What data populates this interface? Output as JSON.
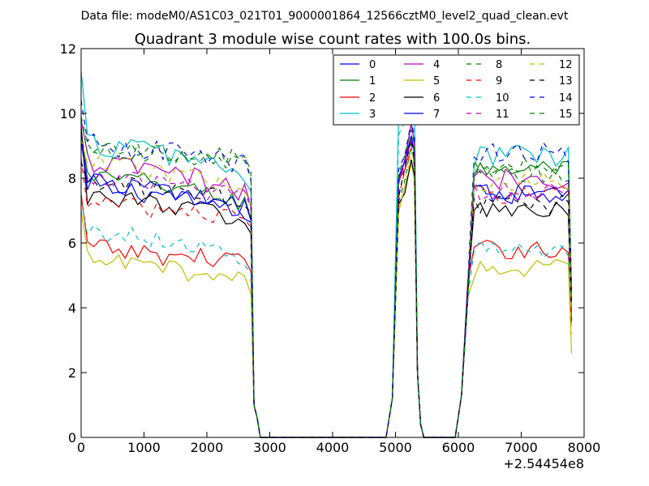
{
  "chart_data": {
    "type": "line",
    "suptitle": "Data file: modeM0/AS1C03_021T01_9000001864_12566cztM0_level2_quad_clean.evt",
    "title": "Quadrant 3 module wise count rates with 100.0s bins.",
    "xlabel": "",
    "ylabel": "",
    "x_offset_label": "+2.54454e8",
    "xlim": [
      0,
      8000
    ],
    "ylim": [
      0,
      12
    ],
    "xticks": [
      0,
      1000,
      2000,
      3000,
      4000,
      5000,
      6000,
      7000,
      8000
    ],
    "yticks": [
      0,
      2,
      4,
      6,
      8,
      10,
      12
    ],
    "legend_position": "top-right",
    "segments": [
      {
        "start": 0,
        "end": 2700,
        "step": 100
      },
      {
        "start": 2800,
        "end": 4800,
        "step": 100
      },
      {
        "start": 4900,
        "end": 5300,
        "step": 100
      },
      {
        "start": 5400,
        "end": 6000,
        "step": 100
      },
      {
        "start": 6100,
        "end": 7700,
        "step": 100
      },
      {
        "start": 7800,
        "end": 7800,
        "step": 100
      }
    ],
    "series": [
      {
        "name": "0",
        "color": "#0000ff",
        "dash": "solid",
        "level_start": 9.5,
        "level_mid": 7.5,
        "level_late": 7.0,
        "level_post": 7.6,
        "peak": 9.6,
        "noise": 0.35,
        "end": 4.0
      },
      {
        "name": "1",
        "color": "#008000",
        "dash": "solid",
        "level_start": 9.3,
        "level_mid": 7.8,
        "level_late": 7.2,
        "level_post": 8.3,
        "peak": 9.3,
        "noise": 0.3,
        "end": 3.6
      },
      {
        "name": "2",
        "color": "#ff0000",
        "dash": "solid",
        "level_start": 7.5,
        "level_mid": 5.6,
        "level_late": 5.5,
        "level_post": 5.8,
        "peak": 9.3,
        "noise": 0.3,
        "end": 3.5
      },
      {
        "name": "3",
        "color": "#00bfbf",
        "dash": "solid",
        "level_start": 11.3,
        "level_mid": 8.8,
        "level_late": 8.1,
        "level_post": 8.7,
        "peak": 11.1,
        "noise": 0.4,
        "end": 4.2
      },
      {
        "name": "4",
        "color": "#bf00bf",
        "dash": "solid",
        "level_start": 9.8,
        "level_mid": 8.2,
        "level_late": 7.5,
        "level_post": 8.0,
        "peak": 9.6,
        "noise": 0.35,
        "end": 4.3
      },
      {
        "name": "5",
        "color": "#bfbf00",
        "dash": "solid",
        "level_start": 7.0,
        "level_mid": 5.2,
        "level_late": 4.9,
        "level_post": 5.2,
        "peak": 8.5,
        "noise": 0.3,
        "end": 2.6
      },
      {
        "name": "6",
        "color": "#000000",
        "dash": "solid",
        "level_start": 9.6,
        "level_mid": 7.2,
        "level_late": 6.7,
        "level_post": 7.0,
        "peak": 8.6,
        "noise": 0.3,
        "end": 3.6
      },
      {
        "name": "7",
        "color": "#0000ff",
        "dash": "solid",
        "level_start": 9.2,
        "level_mid": 7.6,
        "level_late": 7.0,
        "level_post": 7.5,
        "peak": 9.3,
        "noise": 0.3,
        "end": 4.5
      },
      {
        "name": "8",
        "color": "#008000",
        "dash": "dashed",
        "level_start": 9.8,
        "level_mid": 8.7,
        "level_late": 8.4,
        "level_post": 8.1,
        "peak": 9.0,
        "noise": 0.3,
        "end": 3.8
      },
      {
        "name": "9",
        "color": "#ff0000",
        "dash": "dashed",
        "level_start": 8.6,
        "level_mid": 7.0,
        "level_late": 6.8,
        "level_post": 7.5,
        "peak": 9.0,
        "noise": 0.3,
        "end": 3.4
      },
      {
        "name": "10",
        "color": "#00bfbf",
        "dash": "dashed",
        "level_start": 7.3,
        "level_mid": 6.1,
        "level_late": 5.5,
        "level_post": 5.8,
        "peak": 10.8,
        "noise": 0.3,
        "end": 4.0
      },
      {
        "name": "11",
        "color": "#bf00bf",
        "dash": "dashed",
        "level_start": 9.0,
        "level_mid": 7.8,
        "level_late": 7.4,
        "level_post": 7.6,
        "peak": 9.2,
        "noise": 0.3,
        "end": 4.4
      },
      {
        "name": "12",
        "color": "#bfbf00",
        "dash": "dashed",
        "level_start": 9.2,
        "level_mid": 8.2,
        "level_late": 7.6,
        "level_post": 7.9,
        "peak": 8.8,
        "noise": 0.3,
        "end": 3.2
      },
      {
        "name": "13",
        "color": "#000000",
        "dash": "dashed",
        "level_start": 8.5,
        "level_mid": 7.6,
        "level_late": 7.3,
        "level_post": 7.2,
        "peak": 9.1,
        "noise": 0.3,
        "end": 4.1
      },
      {
        "name": "14",
        "color": "#0000ff",
        "dash": "dashed",
        "level_start": 10.4,
        "level_mid": 8.8,
        "level_late": 8.4,
        "level_post": 8.8,
        "peak": 9.8,
        "noise": 0.35,
        "end": 4.6
      },
      {
        "name": "15",
        "color": "#008000",
        "dash": "dashed",
        "level_start": 9.9,
        "level_mid": 8.7,
        "level_late": 8.6,
        "level_post": 8.4,
        "peak": 9.5,
        "noise": 0.3,
        "end": 4.3
      }
    ]
  }
}
